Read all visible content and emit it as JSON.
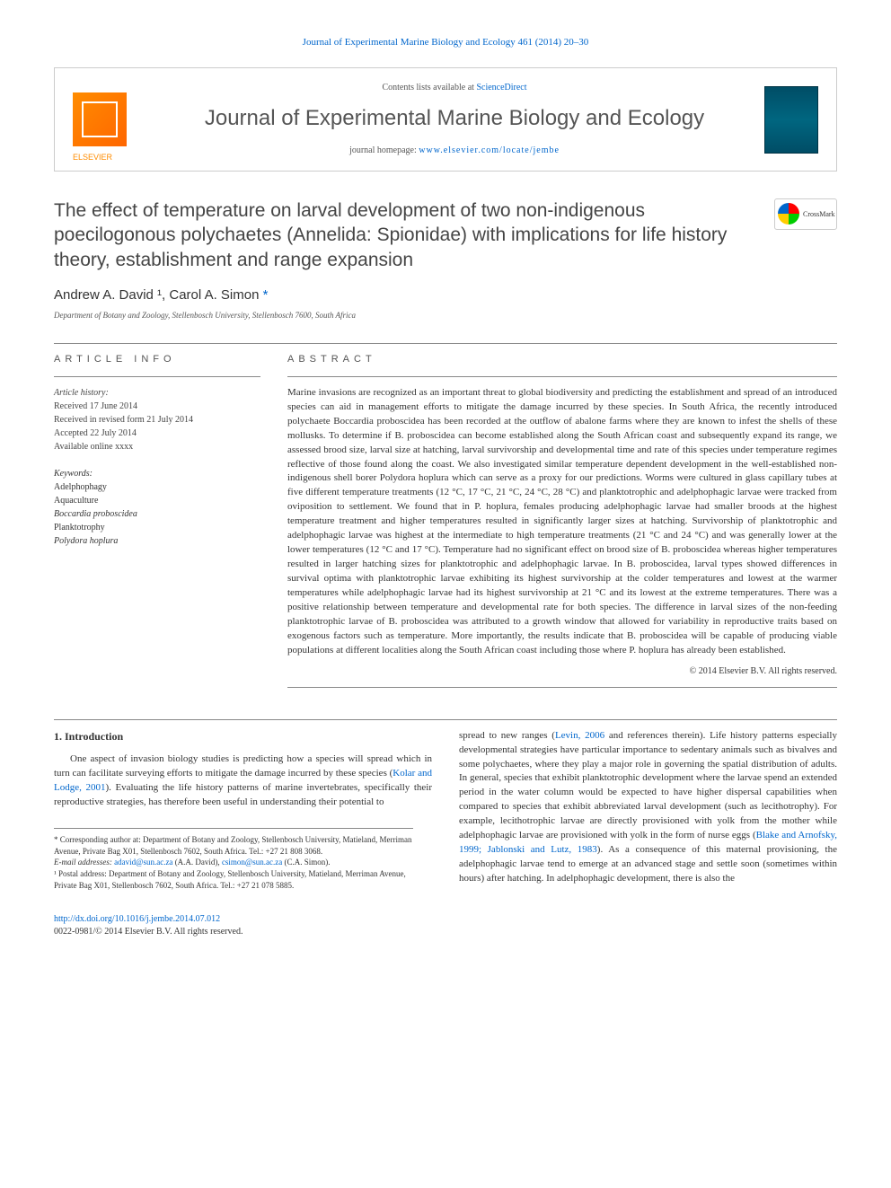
{
  "header": {
    "citation": "Journal of Experimental Marine Biology and Ecology 461 (2014) 20–30",
    "contents_prefix": "Contents lists available at ",
    "contents_link": "ScienceDirect",
    "journal_title": "Journal of Experimental Marine Biology and Ecology",
    "homepage_prefix": "journal homepage: ",
    "homepage_url": "www.elsevier.com/locate/jembe",
    "publisher": "ELSEVIER"
  },
  "article": {
    "title": "The effect of temperature on larval development of two non-indigenous poecilogonous polychaetes (Annelida: Spionidae) with implications for life history theory, establishment and range expansion",
    "crossmark": "CrossMark",
    "authors": "Andrew A. David ¹, Carol A. Simon ",
    "star": "*",
    "affiliation": "Department of Botany and Zoology, Stellenbosch University, Stellenbosch 7600, South Africa"
  },
  "info": {
    "header": "ARTICLE INFO",
    "history_label": "Article history:",
    "received": "Received 17 June 2014",
    "received_revised": "Received in revised form 21 July 2014",
    "accepted": "Accepted 22 July 2014",
    "available": "Available online xxxx",
    "keywords_label": "Keywords:",
    "keywords": [
      "Adelphophagy",
      "Aquaculture",
      "Boccardia proboscidea",
      "Planktotrophy",
      "Polydora hoplura"
    ]
  },
  "abstract": {
    "header": "ABSTRACT",
    "text": "Marine invasions are recognized as an important threat to global biodiversity and predicting the establishment and spread of an introduced species can aid in management efforts to mitigate the damage incurred by these species. In South Africa, the recently introduced polychaete Boccardia proboscidea has been recorded at the outflow of abalone farms where they are known to infest the shells of these mollusks. To determine if B. proboscidea can become established along the South African coast and subsequently expand its range, we assessed brood size, larval size at hatching, larval survivorship and developmental time and rate of this species under temperature regimes reflective of those found along the coast. We also investigated similar temperature dependent development in the well-established non-indigenous shell borer Polydora hoplura which can serve as a proxy for our predictions. Worms were cultured in glass capillary tubes at five different temperature treatments (12 °C, 17 °C, 21 °C, 24 °C, 28 °C) and planktotrophic and adelphophagic larvae were tracked from oviposition to settlement. We found that in P. hoplura, females producing adelphophagic larvae had smaller broods at the highest temperature treatment and higher temperatures resulted in significantly larger sizes at hatching. Survivorship of planktotrophic and adelphophagic larvae was highest at the intermediate to high temperature treatments (21 °C and 24 °C) and was generally lower at the lower temperatures (12 °C and 17 °C). Temperature had no significant effect on brood size of B. proboscidea whereas higher temperatures resulted in larger hatching sizes for planktotrophic and adelphophagic larvae. In B. proboscidea, larval types showed differences in survival optima with planktotrophic larvae exhibiting its highest survivorship at the colder temperatures and lowest at the warmer temperatures while adelphophagic larvae had its highest survivorship at 21 °C and its lowest at the extreme temperatures. There was a positive relationship between temperature and developmental rate for both species. The difference in larval sizes of the non-feeding planktotrophic larvae of B. proboscidea was attributed to a growth window that allowed for variability in reproductive traits based on exogenous factors such as temperature. More importantly, the results indicate that B. proboscidea will be capable of producing viable populations at different localities along the South African coast including those where P. hoplura has already been established.",
    "copyright": "© 2014 Elsevier B.V. All rights reserved."
  },
  "body": {
    "intro_title": "1. Introduction",
    "left_para": "One aspect of invasion biology studies is predicting how a species will spread which in turn can facilitate surveying efforts to mitigate the damage incurred by these species (",
    "left_cite": "Kolar and Lodge, 2001",
    "left_para2": "). Evaluating the life history patterns of marine invertebrates, specifically their reproductive strategies, has therefore been useful in understanding their potential to",
    "right_para1": "spread to new ranges (",
    "right_cite1": "Levin, 2006",
    "right_para2": " and references therein). Life history patterns especially developmental strategies have particular importance to sedentary animals such as bivalves and some polychaetes, where they play a major role in governing the spatial distribution of adults. In general, species that exhibit planktotrophic development where the larvae spend an extended period in the water column would be expected to have higher dispersal capabilities when compared to species that exhibit abbreviated larval development (such as lecithotrophy). For example, lecithotrophic larvae are directly provisioned with yolk from the mother while adelphophagic larvae are provisioned with yolk in the form of nurse eggs (",
    "right_cite2": "Blake and Arnofsky, 1999; Jablonski and Lutz, 1983",
    "right_para3": "). As a consequence of this maternal provisioning, the adelphophagic larvae tend to emerge at an advanced stage and settle soon (sometimes within hours) after hatching. In adelphophagic development, there is also the"
  },
  "footnotes": {
    "corr": "* Corresponding author at: Department of Botany and Zoology, Stellenbosch University, Matieland, Merriman Avenue, Private Bag X01, Stellenbosch 7602, South Africa. Tel.: +27 21 808 3068.",
    "email_label": "E-mail addresses: ",
    "email1": "adavid@sun.ac.za",
    "email1_name": " (A.A. David), ",
    "email2": "csimon@sun.ac.za",
    "email2_name": " (C.A. Simon).",
    "postal": "¹ Postal address: Department of Botany and Zoology, Stellenbosch University, Matieland, Merriman Avenue, Private Bag X01, Stellenbosch 7602, South Africa. Tel.: +27 21 078 5885."
  },
  "footer": {
    "doi": "http://dx.doi.org/10.1016/j.jembe.2014.07.012",
    "issn": "0022-0981/© 2014 Elsevier B.V. All rights reserved."
  },
  "colors": {
    "link": "#0066cc",
    "text": "#333333",
    "muted": "#555555"
  }
}
